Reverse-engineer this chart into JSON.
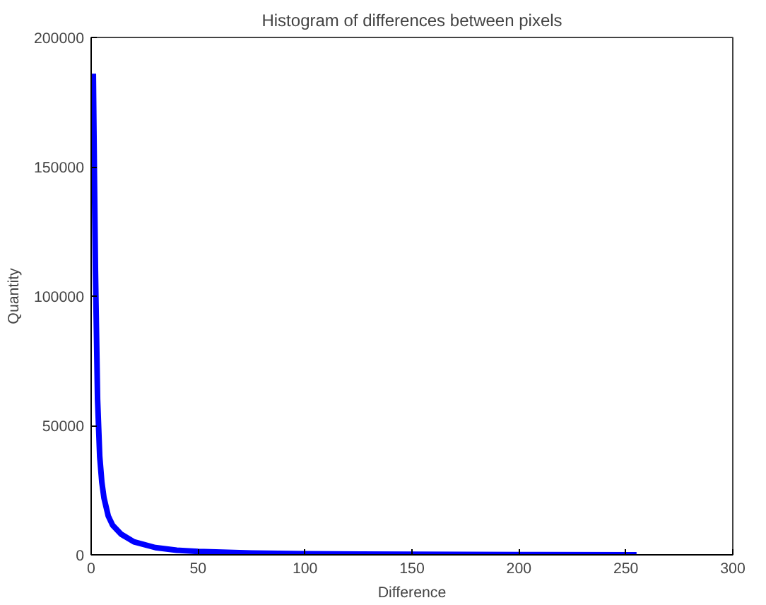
{
  "chart_data": {
    "type": "line",
    "title": "Histogram of differences between pixels",
    "xlabel": "Difference",
    "ylabel": "Quantity",
    "x": [
      1,
      2,
      3,
      4,
      5,
      6,
      8,
      10,
      14,
      20,
      30,
      40,
      50,
      75,
      100,
      150,
      200,
      255
    ],
    "series": [
      {
        "color": "#0000ff",
        "values": [
          186000,
          110000,
          60000,
          38000,
          28000,
          22000,
          15000,
          11500,
          8000,
          5000,
          2800,
          1800,
          1300,
          700,
          400,
          200,
          100,
          0
        ]
      }
    ],
    "xlim": [
      0,
      300
    ],
    "xticks": [
      0,
      50,
      100,
      150,
      200,
      250,
      300
    ],
    "ylim": [
      0,
      200000
    ],
    "yticks": [
      0,
      50000,
      100000,
      150000,
      200000
    ],
    "grid": false,
    "line_style": "solid",
    "marker": "none"
  }
}
